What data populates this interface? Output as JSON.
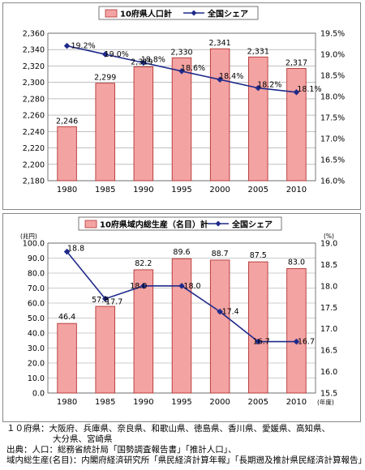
{
  "colors": {
    "bar": "#f4a3a3",
    "bar_edge": "#b33333",
    "line": "#1f2a8a"
  },
  "chart_data": [
    {
      "type": "bar",
      "categories": [
        "1980",
        "1985",
        "1990",
        "1995",
        "2000",
        "2005",
        "2010"
      ],
      "series": [
        {
          "name": "10府県人口計",
          "type": "bar",
          "axis": "left",
          "values": [
            2246,
            2299,
            2319,
            2330,
            2341,
            2331,
            2317
          ],
          "labels": [
            "2,246",
            "2,299",
            "2,319",
            "2,330",
            "2,341",
            "2,331",
            "2,317"
          ]
        },
        {
          "name": "全国シェア",
          "type": "line",
          "axis": "right",
          "values": [
            19.2,
            19.0,
            18.8,
            18.6,
            18.4,
            18.2,
            18.1
          ],
          "labels": [
            "19.2%",
            "19.0%",
            "18.8%",
            "18.6%",
            "18.4%",
            "18.2%",
            "18.1%"
          ]
        }
      ],
      "ylim_left": [
        2180,
        2360
      ],
      "yticks_left": [
        "2,360",
        "2,340",
        "2,320",
        "2,300",
        "2,280",
        "2,260",
        "2,240",
        "2,220",
        "2,200",
        "2,180"
      ],
      "ylim_right": [
        16.0,
        19.5
      ],
      "yticks_right": [
        "19.5%",
        "19.0%",
        "18.5%",
        "18.0%",
        "17.5%",
        "17.0%",
        "16.5%",
        "16.0%"
      ],
      "legend_position": "top",
      "grid": true
    },
    {
      "type": "bar",
      "categories": [
        "1980",
        "1985",
        "1990",
        "1995",
        "2000",
        "2005",
        "2010"
      ],
      "series": [
        {
          "name": "10府県域内総生産（名目）計",
          "type": "bar",
          "axis": "left",
          "values": [
            46.4,
            57.8,
            82.2,
            89.6,
            88.7,
            87.5,
            83.0
          ],
          "labels": [
            "46.4",
            "57.8",
            "82.2",
            "89.6",
            "88.7",
            "87.5",
            "83.0"
          ]
        },
        {
          "name": "全国シェア",
          "type": "line",
          "axis": "right",
          "values": [
            18.8,
            17.7,
            18.0,
            18.0,
            17.4,
            16.7,
            16.7
          ],
          "labels": [
            "18.8",
            "17.7",
            "18.0",
            "18.0",
            "17.4",
            "16.7",
            "16.7"
          ]
        }
      ],
      "ylim_left": [
        0,
        100
      ],
      "yticks_left": [
        "100.0",
        "90.0",
        "80.0",
        "70.0",
        "60.0",
        "50.0",
        "40.0",
        "30.0",
        "20.0",
        "10.0",
        "0.0"
      ],
      "ylim_right": [
        15.5,
        19.0
      ],
      "yticks_right": [
        "19.0",
        "18.5",
        "18.0",
        "17.5",
        "17.0",
        "16.5",
        "16.0",
        "15.5"
      ],
      "unit_left": "(兆円)",
      "unit_right": "(%)",
      "unit_x": "(年度)",
      "legend_position": "top",
      "grid": true
    }
  ],
  "notes": {
    "line1": "１０府県：大阪府、兵庫県、奈良県、和歌山県、徳島県、香川県、愛媛県、高知県、",
    "line2": "大分県、宮崎県",
    "line3": "出典：人口：総務省統計局「国勢調査報告書」「推計人口」、",
    "line4": "域内総生産(名目)：内閣府経済研究所「県民経済計算年報」「長期遡及推計県民経済計算報告」"
  }
}
